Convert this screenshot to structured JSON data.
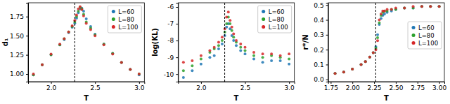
{
  "chart_data": [
    {
      "type": "scatter",
      "x_label": "T",
      "y_label": "d₁",
      "x": [
        1.8,
        1.9,
        2.0,
        2.1,
        2.15,
        2.2,
        2.24,
        2.27,
        2.29,
        2.31,
        2.33,
        2.35,
        2.37,
        2.4,
        2.45,
        2.5,
        2.6,
        2.7,
        2.8,
        2.9,
        3.0
      ],
      "series": [
        {
          "name": "L=60",
          "color": "#1f77b4",
          "values": [
            0.99,
            1.12,
            1.25,
            1.38,
            1.45,
            1.54,
            1.61,
            1.66,
            1.73,
            1.8,
            1.85,
            1.86,
            1.82,
            1.72,
            1.62,
            1.52,
            1.39,
            1.27,
            1.15,
            1.06,
            0.99
          ]
        },
        {
          "name": "L=80",
          "color": "#2ca02c",
          "values": [
            0.99,
            1.12,
            1.25,
            1.38,
            1.46,
            1.55,
            1.62,
            1.68,
            1.75,
            1.82,
            1.87,
            1.85,
            1.78,
            1.68,
            1.6,
            1.51,
            1.39,
            1.27,
            1.15,
            1.06,
            1.0
          ]
        },
        {
          "name": "L=100",
          "color": "#d62728",
          "values": [
            1.0,
            1.12,
            1.26,
            1.39,
            1.46,
            1.55,
            1.63,
            1.7,
            1.77,
            1.85,
            1.88,
            1.84,
            1.76,
            1.66,
            1.58,
            1.5,
            1.38,
            1.26,
            1.15,
            1.06,
            1.0
          ]
        }
      ],
      "vline": 2.269,
      "xlim": [
        1.74,
        3.06
      ],
      "ylim": [
        0.9,
        1.93
      ],
      "xticks": [
        {
          "value": 2,
          "label": "2.0"
        },
        {
          "value": 2.5,
          "label": "2.5"
        },
        {
          "value": 3,
          "label": "3.0"
        }
      ],
      "yticks": [
        {
          "value": 1,
          "label": "1.00"
        },
        {
          "value": 1.25,
          "label": "1.25"
        },
        {
          "value": 1.5,
          "label": "1.50"
        },
        {
          "value": 1.75,
          "label": "1.75"
        }
      ],
      "legend": "upper right",
      "marker": "circle"
    },
    {
      "type": "scatter",
      "x_label": "T",
      "y_label": "log(KL)",
      "x": [
        1.8,
        1.9,
        2.0,
        2.1,
        2.15,
        2.2,
        2.24,
        2.27,
        2.29,
        2.31,
        2.33,
        2.35,
        2.37,
        2.4,
        2.45,
        2.5,
        2.6,
        2.7,
        2.8,
        2.9,
        3.0
      ],
      "series": [
        {
          "name": "L=60",
          "color": "#1f77b4",
          "values": [
            -10.2,
            -9.8,
            -9.4,
            -9.0,
            -8.9,
            -8.5,
            -8.2,
            -7.7,
            -7.2,
            -7.0,
            -7.3,
            -7.7,
            -8.0,
            -8.3,
            -8.6,
            -8.8,
            -9.1,
            -9.3,
            -9.2,
            -9.2,
            -9.4
          ]
        },
        {
          "name": "L=80",
          "color": "#2ca02c",
          "values": [
            -9.8,
            -9.5,
            -9.1,
            -8.7,
            -8.5,
            -8.3,
            -8.0,
            -7.5,
            -7.0,
            -6.6,
            -7.0,
            -7.4,
            -7.8,
            -8.1,
            -8.4,
            -8.6,
            -8.9,
            -9.0,
            -8.9,
            -9.0,
            -9.1
          ]
        },
        {
          "name": "L=100",
          "color": "#d62728",
          "values": [
            -9.3,
            -9.2,
            -8.9,
            -8.6,
            -8.4,
            -8.1,
            -7.8,
            -7.3,
            -6.6,
            -6.3,
            -6.8,
            -7.2,
            -7.6,
            -8.0,
            -8.2,
            -8.4,
            -8.7,
            -8.8,
            -8.8,
            -8.9,
            -8.8
          ]
        }
      ],
      "vline": 2.269,
      "xlim": [
        1.74,
        3.06
      ],
      "ylim": [
        -10.45,
        -5.75
      ],
      "xticks": [
        {
          "value": 2,
          "label": "2.0"
        },
        {
          "value": 2.5,
          "label": "2.5"
        },
        {
          "value": 3,
          "label": "3.0"
        }
      ],
      "yticks": [
        -10,
        -9,
        -8,
        -7,
        -6
      ],
      "legend": "upper right",
      "marker": "circle"
    },
    {
      "type": "scatter",
      "x_label": "T",
      "y_label": "r*/N",
      "x": [
        1.8,
        1.9,
        2.0,
        2.1,
        2.15,
        2.2,
        2.24,
        2.27,
        2.29,
        2.31,
        2.33,
        2.35,
        2.37,
        2.4,
        2.45,
        2.5,
        2.6,
        2.7,
        2.8,
        2.9,
        3.0
      ],
      "series": [
        {
          "name": "L=60",
          "color": "#1f77b4",
          "values": [
            0.04,
            0.05,
            0.07,
            0.1,
            0.12,
            0.15,
            0.18,
            0.22,
            0.3,
            0.37,
            0.41,
            0.43,
            0.44,
            0.45,
            0.46,
            0.47,
            0.48,
            0.48,
            0.49,
            0.49,
            0.49
          ]
        },
        {
          "name": "L=80",
          "color": "#2ca02c",
          "values": [
            0.04,
            0.05,
            0.07,
            0.1,
            0.12,
            0.15,
            0.18,
            0.21,
            0.28,
            0.38,
            0.43,
            0.45,
            0.46,
            0.46,
            0.47,
            0.47,
            0.48,
            0.48,
            0.49,
            0.49,
            0.49
          ]
        },
        {
          "name": "L=100",
          "color": "#d62728",
          "values": [
            0.04,
            0.05,
            0.07,
            0.1,
            0.12,
            0.15,
            0.18,
            0.2,
            0.26,
            0.4,
            0.44,
            0.46,
            0.46,
            0.47,
            0.47,
            0.48,
            0.48,
            0.49,
            0.49,
            0.49,
            0.49
          ]
        }
      ],
      "vline": 2.269,
      "xlim": [
        1.72,
        3.06
      ],
      "ylim": [
        -0.015,
        0.515
      ],
      "xticks": [
        {
          "value": 1.75,
          "label": "1.75"
        },
        {
          "value": 2,
          "label": "2.00"
        },
        {
          "value": 2.25,
          "label": "2.25"
        },
        {
          "value": 2.5,
          "label": "2.50"
        },
        {
          "value": 2.75,
          "label": "2.75"
        },
        {
          "value": 3,
          "label": "3.00"
        }
      ],
      "yticks": [
        {
          "value": 0,
          "label": "0.0"
        },
        {
          "value": 0.1,
          "label": "0.1"
        },
        {
          "value": 0.2,
          "label": "0.2"
        },
        {
          "value": 0.3,
          "label": "0.3"
        },
        {
          "value": 0.4,
          "label": "0.4"
        },
        {
          "value": 0.5,
          "label": "0.5"
        }
      ],
      "legend": "center right",
      "marker": "circle"
    }
  ]
}
